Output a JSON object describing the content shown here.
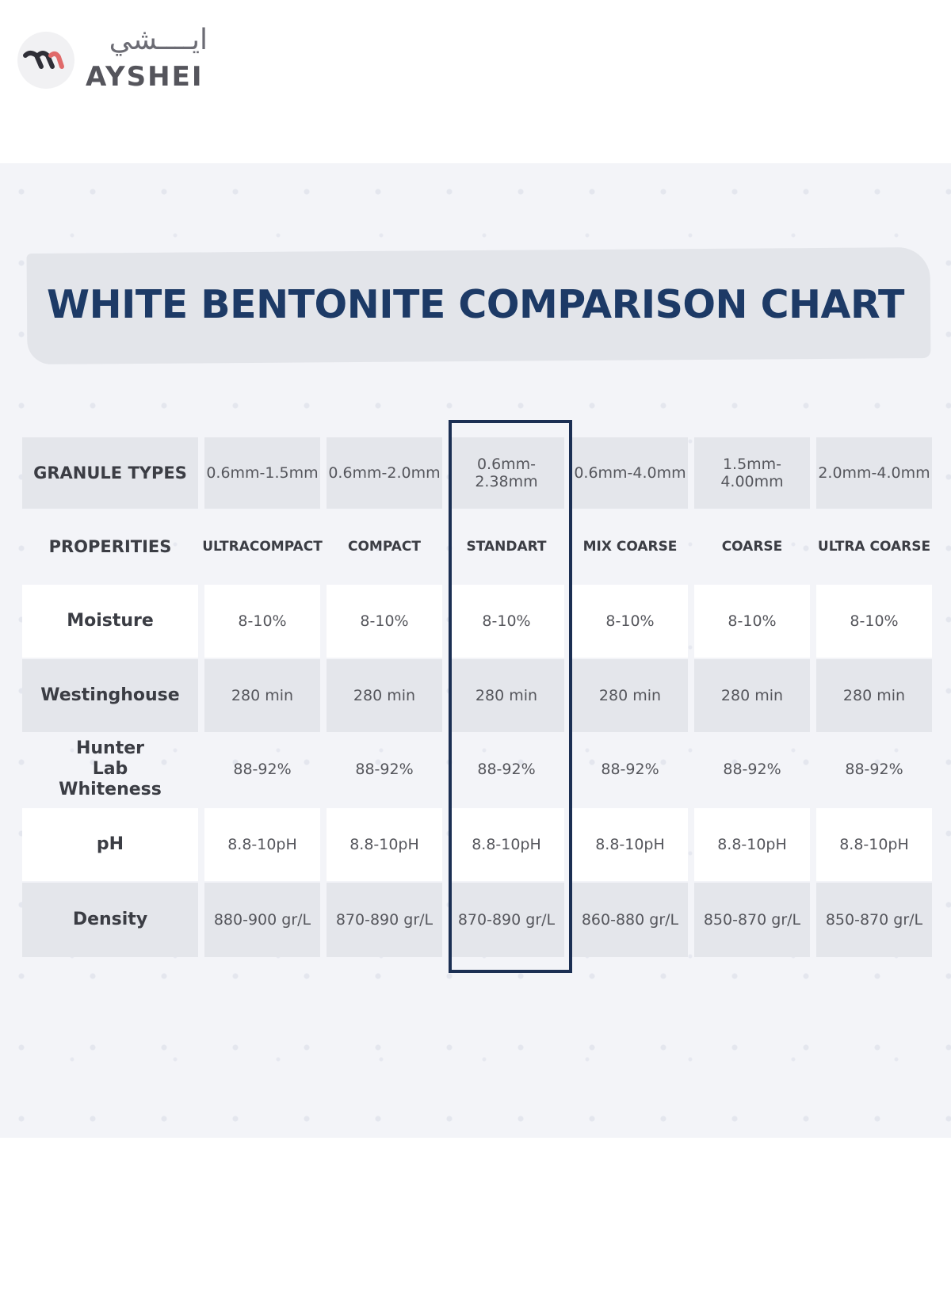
{
  "logo": {
    "arabic": "ايــــشي",
    "latin": "AYSHEI",
    "icon": "ayshei-logo-icon"
  },
  "title": "WHITE BENTONITE COMPARISON CHART",
  "table": {
    "granule_label": "GRANULE TYPES",
    "granules": [
      "0.6mm-1.5mm",
      "0.6mm-2.0mm",
      "0.6mm-2.38mm",
      "0.6mm-4.0mm",
      "1.5mm-4.00mm",
      "2.0mm-4.0mm"
    ],
    "properties_label": "PROPERITIES",
    "types": [
      "ULTRACOMPACT",
      "COMPACT",
      "STANDART",
      "MIX COARSE",
      "COARSE",
      "ULTRA COARSE"
    ],
    "highlighted_column": "STANDART",
    "rows": [
      {
        "label": "Moisture",
        "values": [
          "8-10%",
          "8-10%",
          "8-10%",
          "8-10%",
          "8-10%",
          "8-10%"
        ]
      },
      {
        "label": "Westinghouse",
        "values": [
          "280 min",
          "280 min",
          "280 min",
          "280 min",
          "280 min",
          "280 min"
        ]
      },
      {
        "label": "Hunter Lab Whiteness",
        "values": [
          "88-92%",
          "88-92%",
          "88-92%",
          "88-92%",
          "88-92%",
          "88-92%"
        ]
      },
      {
        "label": "pH",
        "values": [
          "8.8-10pH",
          "8.8-10pH",
          "8.8-10pH",
          "8.8-10pH",
          "8.8-10pH",
          "8.8-10pH"
        ]
      },
      {
        "label": "Density",
        "values": [
          "880-900 gr/L",
          "870-890 gr/L",
          "870-890 gr/L",
          "860-880 gr/L",
          "850-870 gr/L",
          "850-870 gr/L"
        ]
      }
    ]
  },
  "colors": {
    "title": "#1d3a66",
    "highlight_border": "#1b2f53",
    "row_gray": "#e4e6eb",
    "row_white": "#ffffff"
  }
}
